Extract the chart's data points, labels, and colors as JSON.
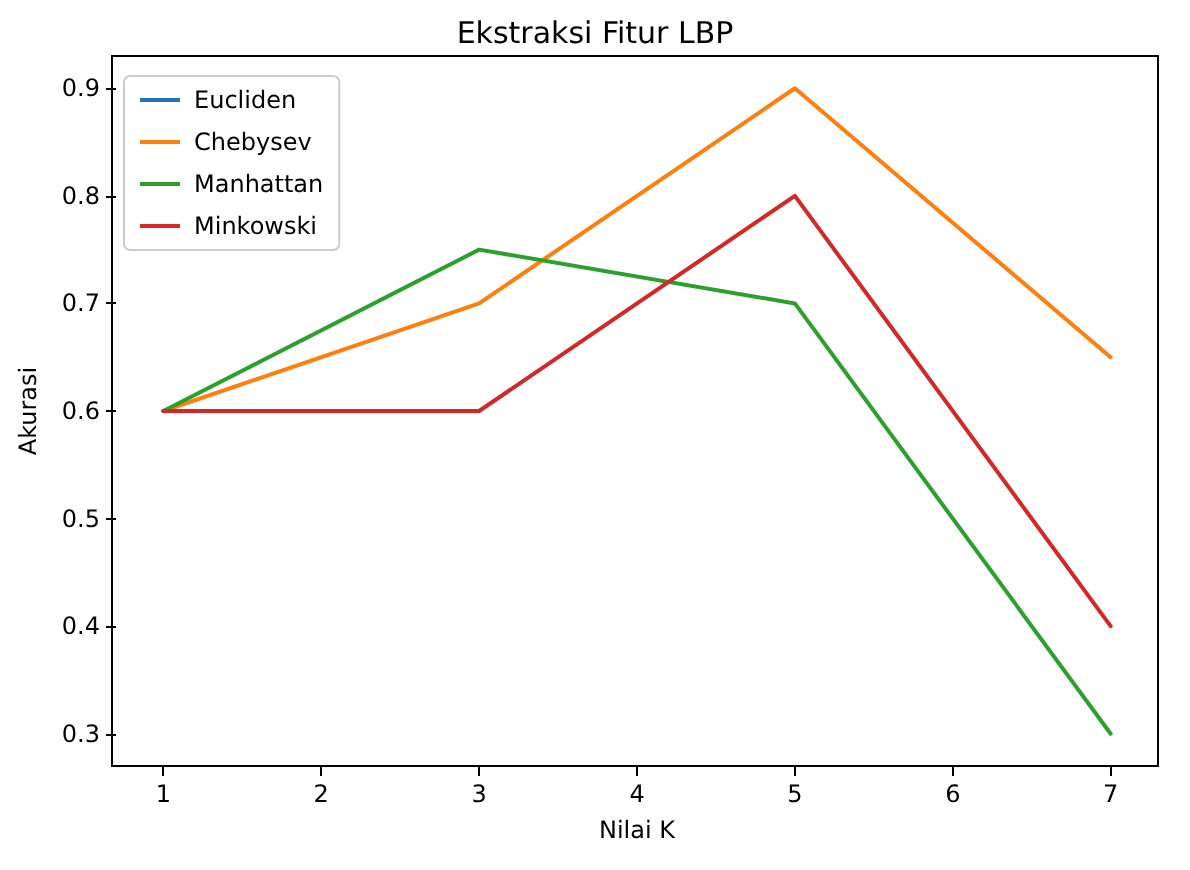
{
  "chart_data": {
    "type": "line",
    "title": "Ekstraksi Fitur LBP",
    "xlabel": "Nilai K",
    "ylabel": "Akurasi",
    "x": [
      1,
      3,
      5,
      7
    ],
    "series": [
      {
        "name": "Eucliden",
        "color": "#1f77b4",
        "values": [
          null,
          null,
          null,
          null
        ]
      },
      {
        "name": "Chebysev",
        "color": "#ff7f0e",
        "values": [
          0.6,
          0.7,
          0.9,
          0.65
        ]
      },
      {
        "name": "Manhattan",
        "color": "#2ca02c",
        "values": [
          0.6,
          0.75,
          0.7,
          0.3
        ]
      },
      {
        "name": "Minkowski",
        "color": "#d62728",
        "values": [
          0.6,
          0.6,
          0.8,
          0.4
        ]
      }
    ],
    "xlim": [
      0.7,
      7.3
    ],
    "xticks": [
      1,
      2,
      3,
      4,
      5,
      6,
      7
    ],
    "ylim": [
      0.27,
      0.93
    ],
    "yticks": [
      0.3,
      0.4,
      0.5,
      0.6,
      0.7,
      0.8,
      0.9
    ],
    "grid": false,
    "legend": "top left",
    "marker": "none",
    "line_style": "solid"
  }
}
